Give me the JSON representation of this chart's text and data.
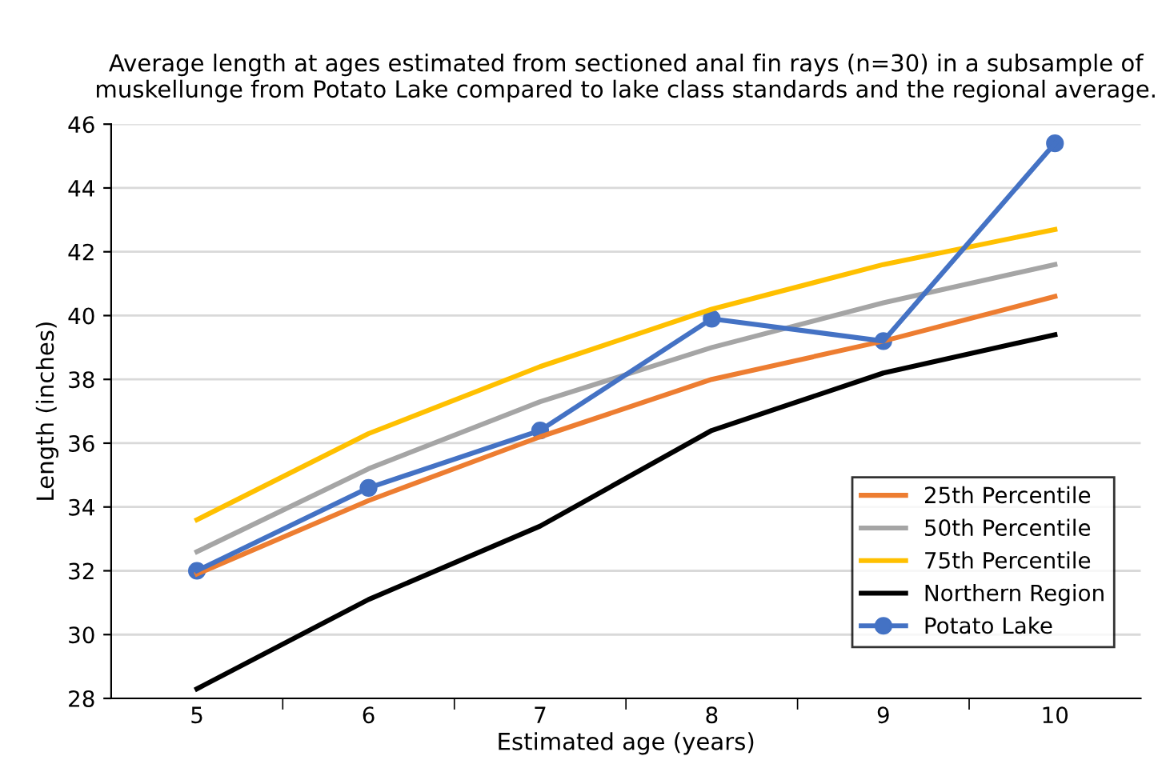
{
  "chart_data": {
    "type": "line",
    "title": "Average length at ages estimated from sectioned anal fin rays (n=30) in a subsample of\nmuskellunge from Potato Lake compared to lake class standards and the regional average.",
    "xlabel": "Estimated age (years)",
    "ylabel": "Length (inches)",
    "categories": [
      "5",
      "6",
      "7",
      "8",
      "9",
      "10"
    ],
    "series": [
      {
        "name": "25th Percentile",
        "color": "#ed7d31",
        "values": [
          31.9,
          34.2,
          36.2,
          38.0,
          39.2,
          40.6
        ],
        "marker": "none"
      },
      {
        "name": "50th Percentile",
        "color": "#a5a5a5",
        "values": [
          32.6,
          35.2,
          37.3,
          39.0,
          40.4,
          41.6
        ],
        "marker": "none"
      },
      {
        "name": "75th Percentile",
        "color": "#ffc000",
        "values": [
          33.6,
          36.3,
          38.4,
          40.2,
          41.6,
          42.7
        ],
        "marker": "none"
      },
      {
        "name": "Northern Region",
        "color": "#000000",
        "values": [
          28.3,
          31.1,
          33.4,
          36.4,
          38.2,
          39.4
        ],
        "marker": "none"
      },
      {
        "name": "Potato Lake",
        "color": "#4472c4",
        "values": [
          32.0,
          34.6,
          36.4,
          39.9,
          39.2,
          45.4
        ],
        "marker": "circle"
      }
    ],
    "ylim": [
      28,
      46
    ],
    "yticks": [
      28,
      30,
      32,
      34,
      36,
      38,
      40,
      42,
      44,
      46
    ],
    "grid": "y",
    "legend": "bottom right",
    "line_style": "solid"
  }
}
